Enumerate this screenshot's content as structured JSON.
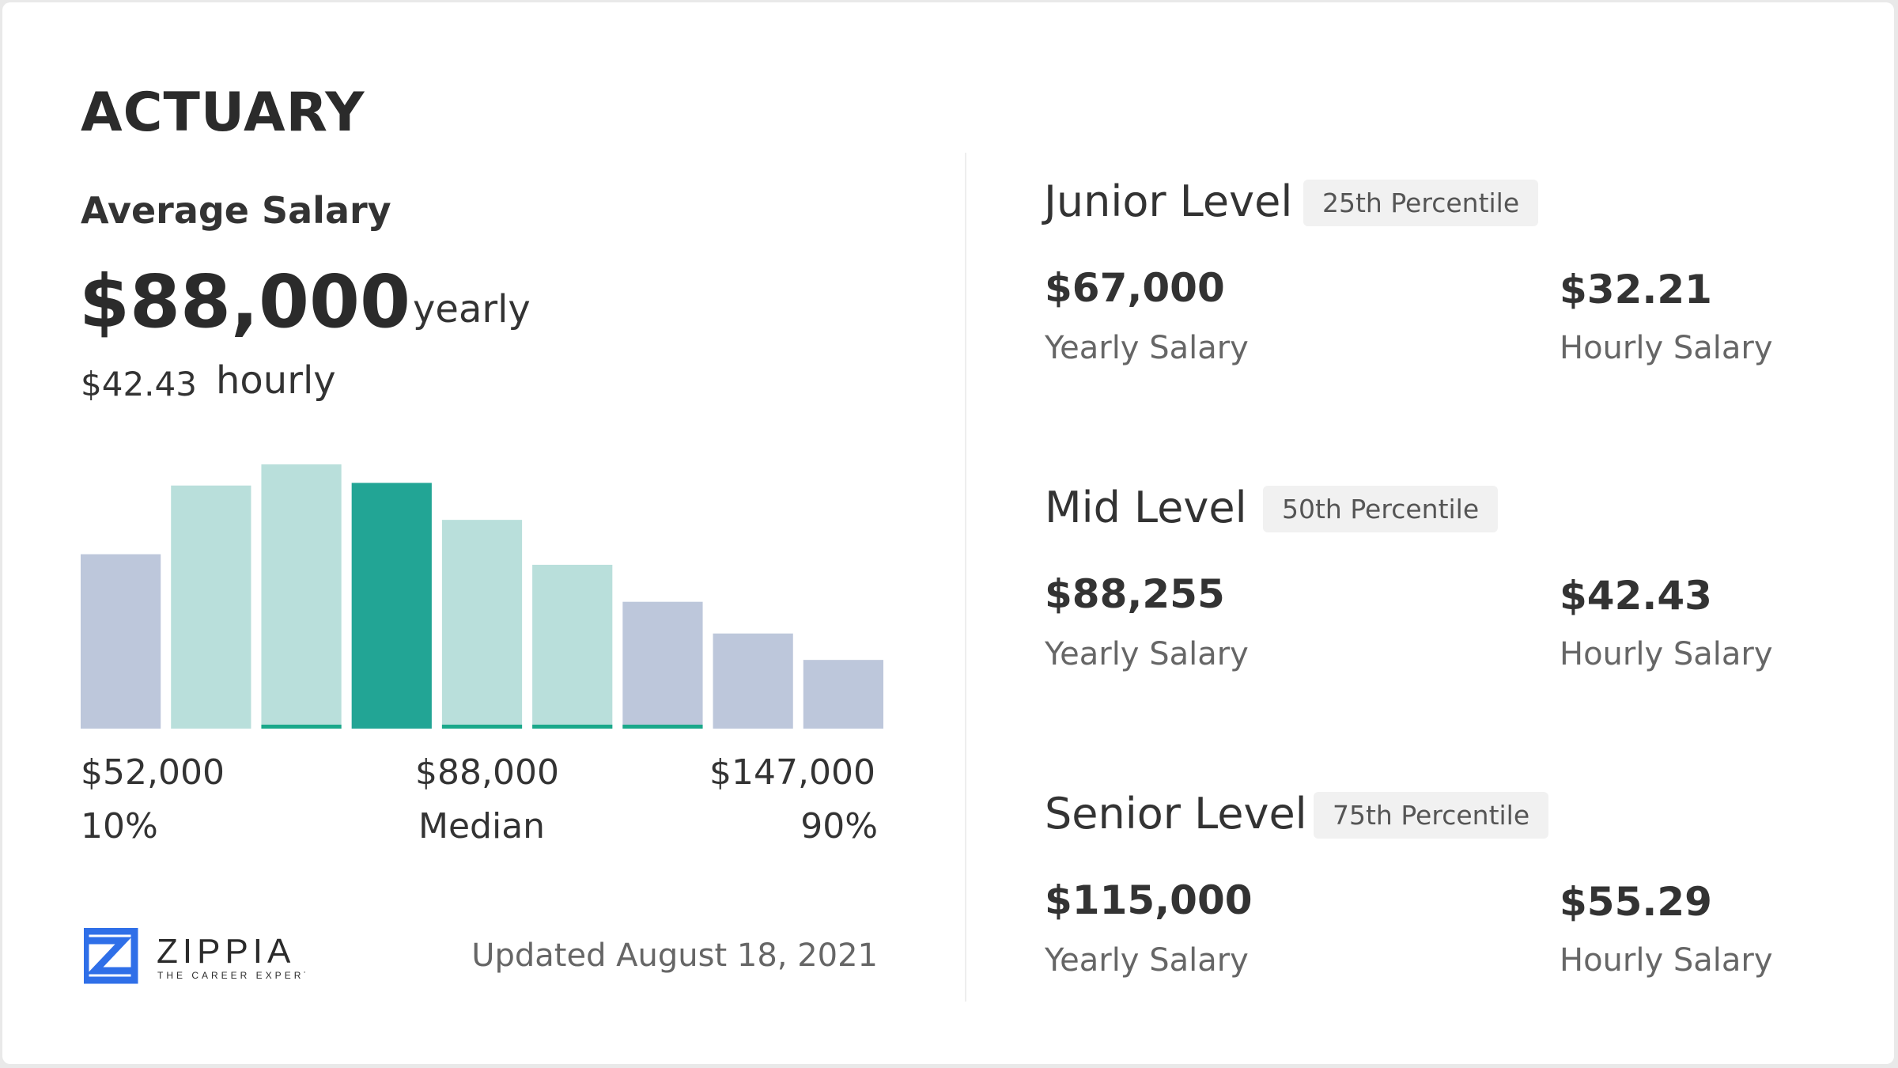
{
  "title": "ACTUARY",
  "average": {
    "label": "Average Salary",
    "yearly": "$88,000",
    "yearly_unit": "yearly",
    "hourly": "$42.43",
    "hourly_unit": "hourly"
  },
  "chart_data": {
    "type": "bar",
    "relative_heights": [
      66,
      92,
      100,
      93,
      79,
      62,
      48,
      36,
      26
    ],
    "highlight_index": 3,
    "band_indices": [
      1,
      2,
      3,
      4,
      5
    ],
    "underline_indices": [
      2,
      3,
      4,
      5,
      6
    ],
    "x_labels": {
      "low": {
        "value": "$52,000",
        "pct": "10%"
      },
      "mid": {
        "value": "$88,000",
        "pct": "Median"
      },
      "high": {
        "value": "$147,000",
        "pct": "90%"
      }
    },
    "colors": {
      "outer": "#bdc7db",
      "band": "#b9dfdb",
      "highlight": "#22a595",
      "underline": "#1aa88a"
    }
  },
  "logo": {
    "name": "ZIPPIA",
    "tagline": "THE CAREER EXPERT",
    "color": "#2f6fe8"
  },
  "updated": "Updated August 18, 2021",
  "levels": [
    {
      "name": "Junior Level",
      "badge": "25th Percentile",
      "yearly": "$67,000",
      "yearly_label": "Yearly Salary",
      "hourly": "$32.21",
      "hourly_label": "Hourly Salary"
    },
    {
      "name": "Mid Level",
      "badge": "50th Percentile",
      "yearly": "$88,255",
      "yearly_label": "Yearly Salary",
      "hourly": "$42.43",
      "hourly_label": "Hourly Salary"
    },
    {
      "name": "Senior Level",
      "badge": "75th Percentile",
      "yearly": "$115,000",
      "yearly_label": "Yearly Salary",
      "hourly": "$55.29",
      "hourly_label": "Hourly Salary"
    }
  ]
}
